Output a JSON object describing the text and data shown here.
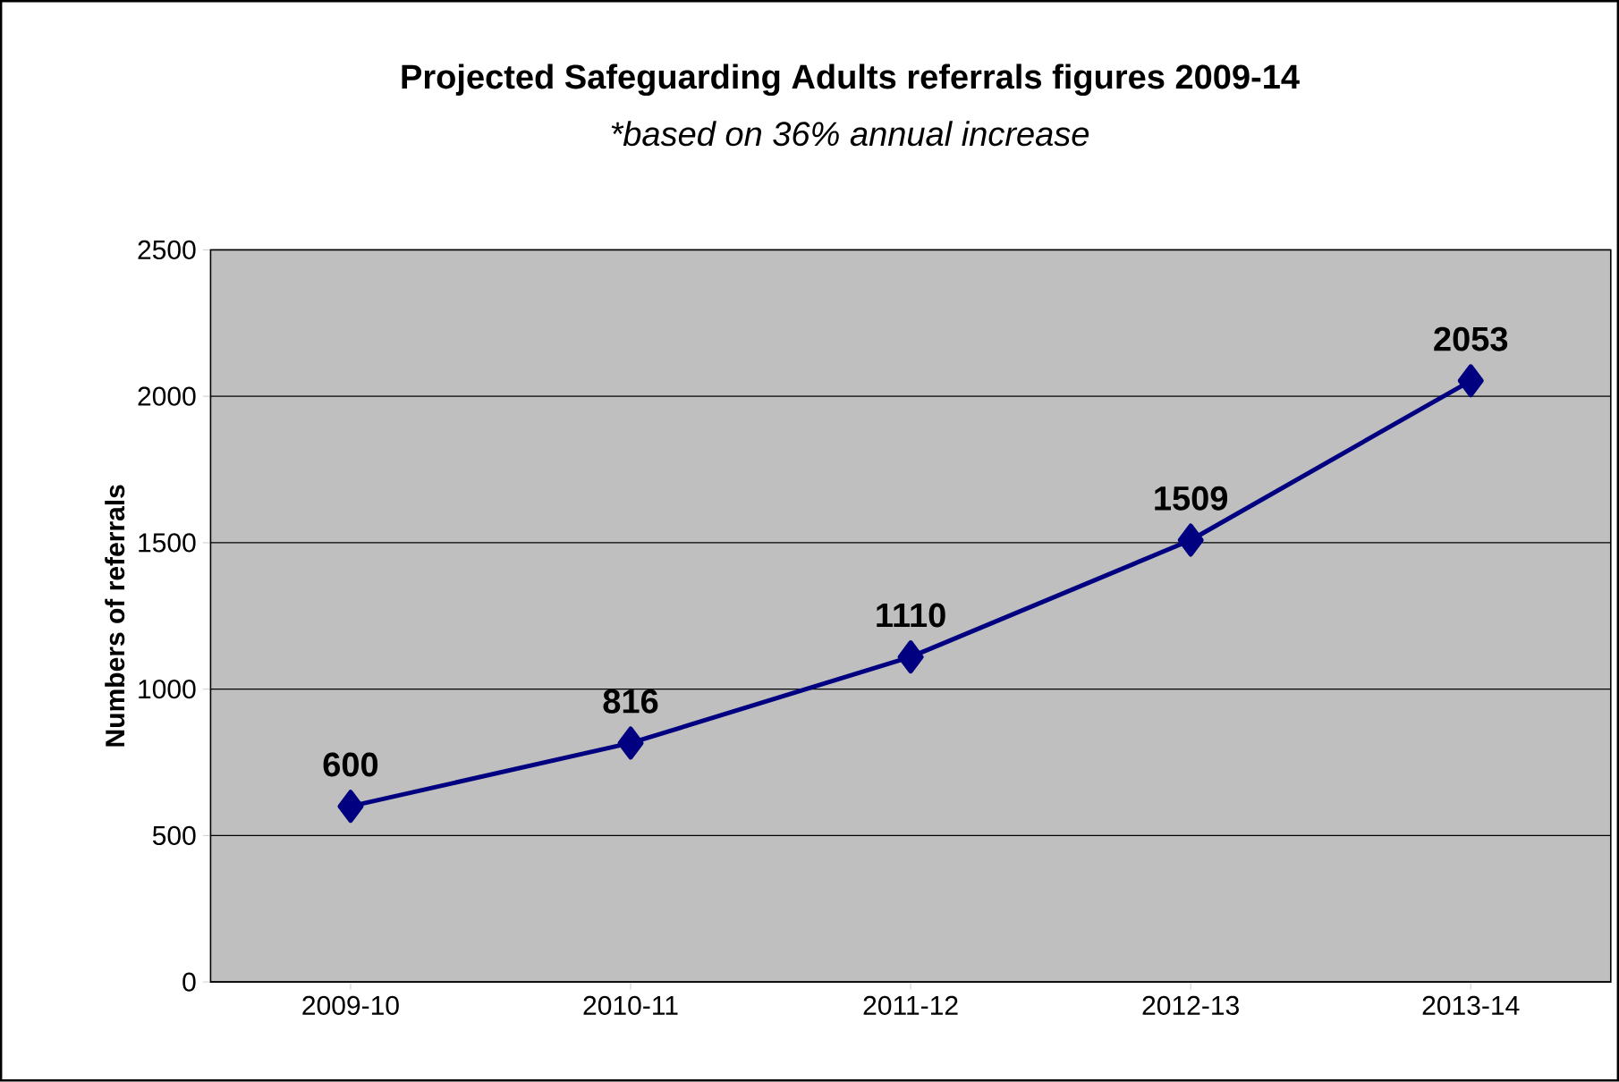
{
  "chart_data": {
    "type": "line",
    "title": "Projected Safeguarding Adults referrals figures 2009-14",
    "subtitle": "*based on 36% annual increase",
    "ylabel": "Numbers of referrals",
    "categories": [
      "2009-10",
      "2010-11",
      "2011-12",
      "2012-13",
      "2013-14"
    ],
    "series": [
      {
        "color": "#000080",
        "values": [
          600,
          816,
          1110,
          1509,
          2053
        ]
      }
    ],
    "ylim": [
      0,
      2500
    ],
    "yticks": [
      0,
      500,
      1000,
      1500,
      2000,
      2500
    ],
    "grid": "y",
    "marker": "diamond",
    "line_style": "solid",
    "data_labels": true
  }
}
